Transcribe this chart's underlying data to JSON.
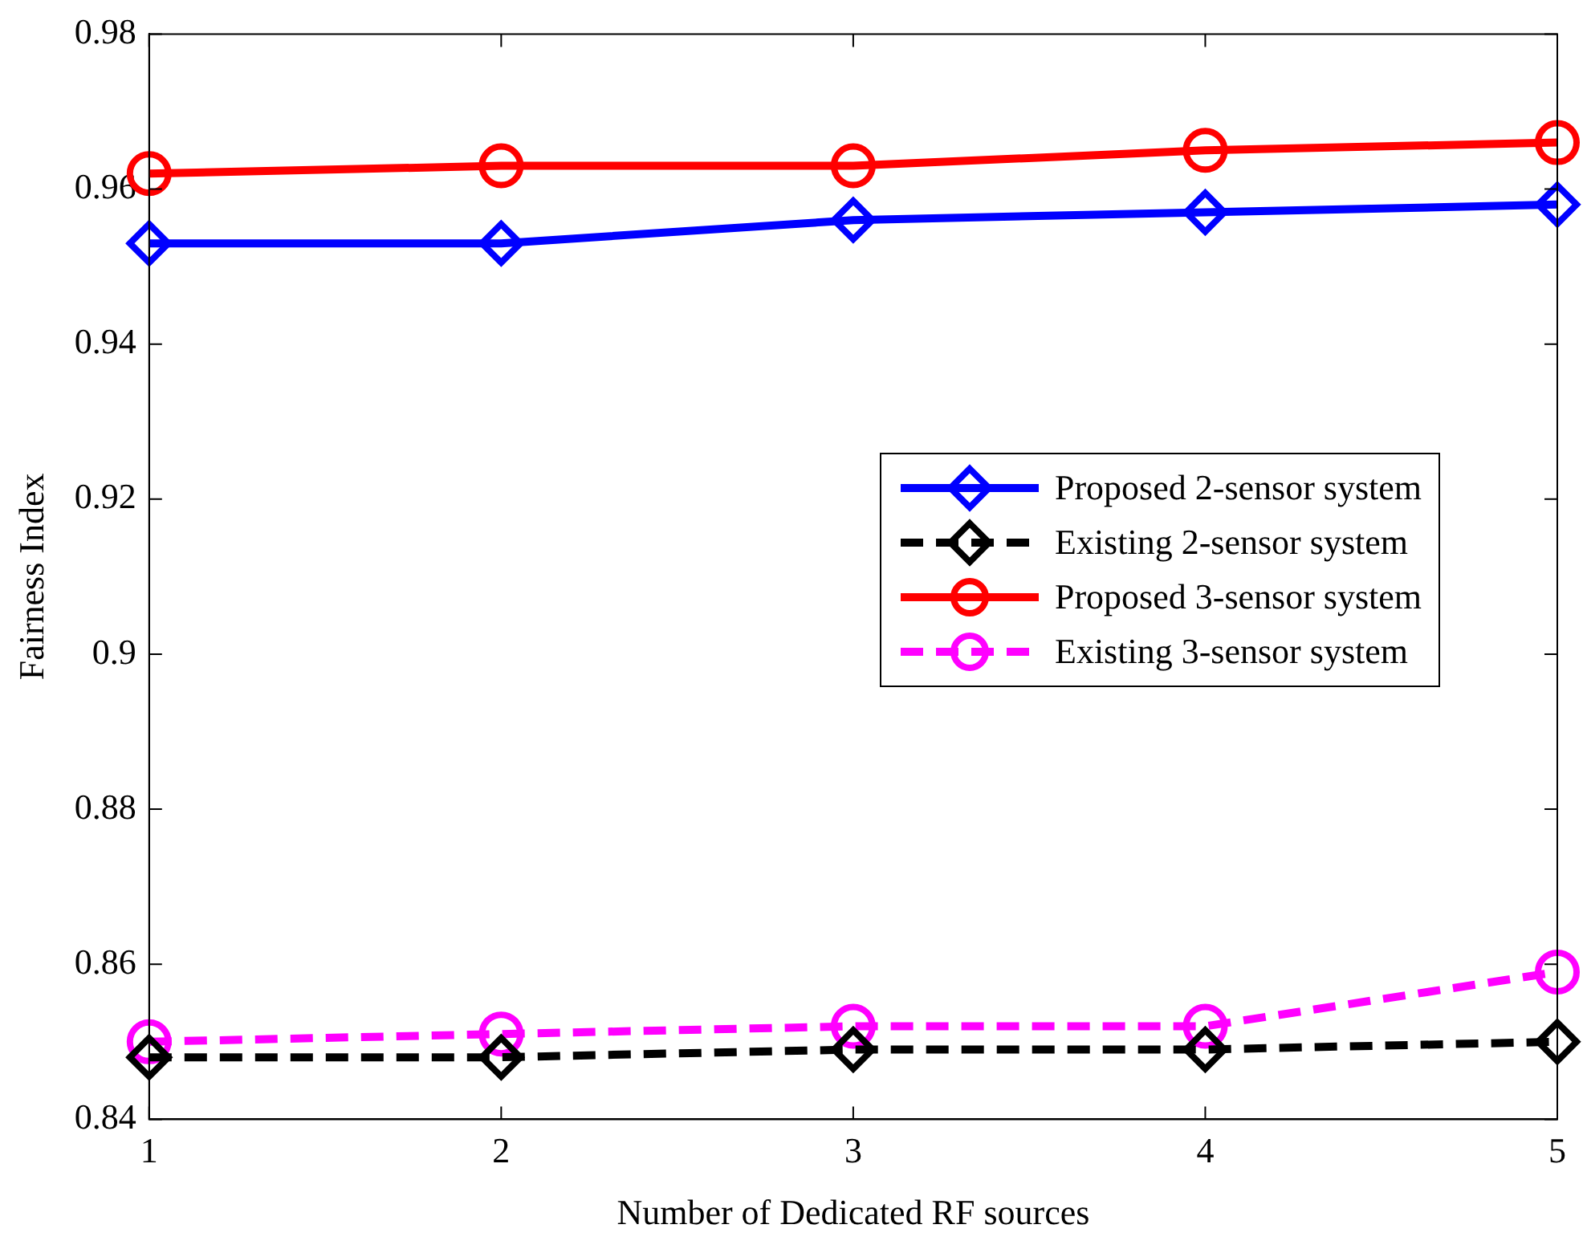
{
  "chart_data": {
    "type": "line",
    "xlabel": "Number of Dedicated RF sources",
    "ylabel": "Fairness Index",
    "x": [
      1,
      2,
      3,
      4,
      5
    ],
    "xlim": [
      1,
      5
    ],
    "xticks": [
      1,
      2,
      3,
      4,
      5
    ],
    "ylim": [
      0.84,
      0.98
    ],
    "yticks": [
      {
        "value": 0.84,
        "label": "0.84"
      },
      {
        "value": 0.86,
        "label": "0.86"
      },
      {
        "value": 0.88,
        "label": "0.88"
      },
      {
        "value": 0.9,
        "label": "0.9"
      },
      {
        "value": 0.92,
        "label": "0.92"
      },
      {
        "value": 0.94,
        "label": "0.94"
      },
      {
        "value": 0.96,
        "label": "0.96"
      },
      {
        "value": 0.98,
        "label": "0.98"
      }
    ],
    "grid": false,
    "legend": "right",
    "series": [
      {
        "name": "Proposed 2-sensor system",
        "color": "#0000ff",
        "marker": "diamond",
        "line_style": "solid",
        "values": [
          0.953,
          0.953,
          0.956,
          0.957,
          0.958
        ]
      },
      {
        "name": "Existing 2-sensor system",
        "color": "#000000",
        "marker": "diamond",
        "line_style": "dashed",
        "values": [
          0.848,
          0.848,
          0.849,
          0.849,
          0.85
        ]
      },
      {
        "name": "Proposed 3-sensor system",
        "color": "#ff0000",
        "marker": "circle",
        "line_style": "solid",
        "values": [
          0.962,
          0.963,
          0.963,
          0.965,
          0.966
        ]
      },
      {
        "name": "Existing 3-sensor system",
        "color": "#ff00ff",
        "marker": "circle",
        "line_style": "dashed",
        "values": [
          0.85,
          0.851,
          0.852,
          0.852,
          0.859
        ]
      }
    ]
  }
}
